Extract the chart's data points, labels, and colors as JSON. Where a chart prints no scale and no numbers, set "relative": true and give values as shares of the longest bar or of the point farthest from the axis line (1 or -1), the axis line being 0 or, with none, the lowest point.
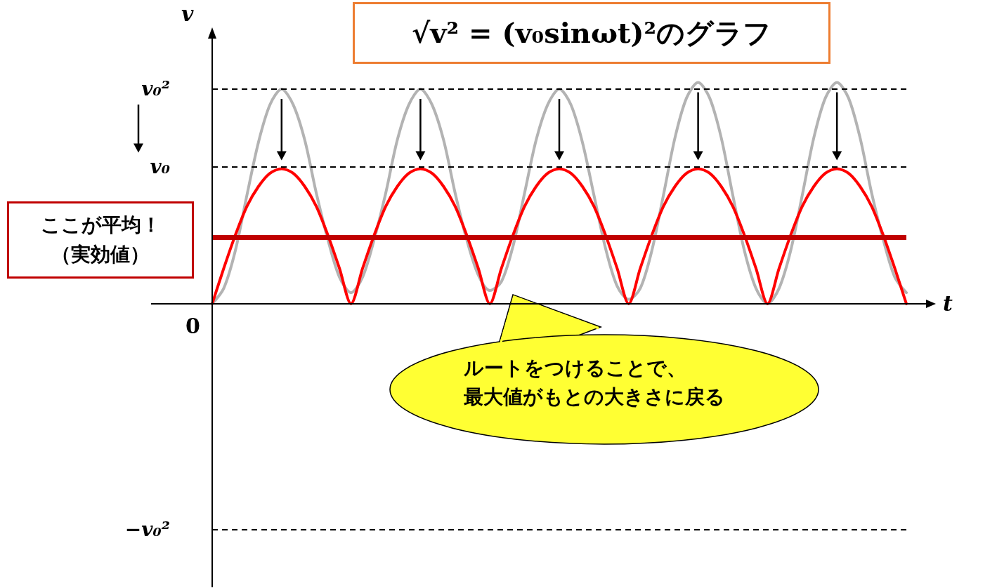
{
  "chart_data": {
    "type": "line",
    "title": "√v² = (v₀sinωt)²のグラフ",
    "xlabel": "t",
    "ylabel": "v",
    "relative": true,
    "tick_labels": false,
    "marker": "none",
    "categories": [
      null,
      null,
      null,
      null,
      null,
      null,
      null,
      null,
      null,
      null,
      null,
      null,
      null,
      null,
      null,
      null,
      null,
      null,
      null,
      null,
      null,
      null,
      null,
      null,
      null,
      null,
      null,
      null,
      null,
      null,
      null,
      null,
      null,
      null,
      null,
      null,
      null,
      null,
      null,
      null,
      null,
      null,
      null,
      null,
      null,
      null,
      null,
      null,
      null,
      null,
      null,
      null,
      null,
      null,
      null,
      null,
      null,
      null,
      null,
      null,
      null
    ],
    "series": [
      {
        "color": "#b3b3b3",
        "values": [
          0,
          0.07,
          0.24,
          0.49,
          0.73,
          0.9,
          0.97,
          0.9,
          0.74,
          0.5,
          0.29,
          0.12,
          0.05,
          0.12,
          0.29,
          0.5,
          0.74,
          0.9,
          0.97,
          0.9,
          0.74,
          0.5,
          0.29,
          0.13,
          0.06,
          0.1,
          0.26,
          0.5,
          0.74,
          0.9,
          0.97,
          0.9,
          0.73,
          0.49,
          0.25,
          0.08,
          0.02,
          0.07,
          0.24,
          0.49,
          0.75,
          0.93,
          1,
          0.93,
          0.75,
          0.49,
          0.24,
          0.07,
          0,
          0.07,
          0.24,
          0.49,
          0.75,
          0.93,
          1,
          0.93,
          0.75,
          0.5,
          0.29,
          0.12,
          0.05
        ]
      },
      {
        "color": "#ff0000",
        "values": [
          0,
          0.16,
          0.31,
          0.44,
          0.53,
          0.59,
          0.61,
          0.59,
          0.53,
          0.44,
          0.31,
          0.16,
          0,
          0.16,
          0.31,
          0.44,
          0.53,
          0.59,
          0.61,
          0.59,
          0.53,
          0.44,
          0.31,
          0.16,
          0,
          0.16,
          0.31,
          0.44,
          0.53,
          0.59,
          0.61,
          0.59,
          0.53,
          0.44,
          0.31,
          0.16,
          0,
          0.16,
          0.31,
          0.44,
          0.53,
          0.59,
          0.61,
          0.59,
          0.53,
          0.44,
          0.31,
          0.16,
          0,
          0.16,
          0.31,
          0.44,
          0.53,
          0.59,
          0.61,
          0.59,
          0.53,
          0.44,
          0.31,
          0.16,
          0
        ]
      }
    ],
    "ref_lines": [
      {
        "axis": "y",
        "value": 0.97,
        "label": "v₀²",
        "color": "#000000",
        "line_style": "dashed"
      },
      {
        "axis": "y",
        "value": 0.62,
        "label": "v₀",
        "color": "#000000",
        "line_style": "dashed"
      },
      {
        "axis": "y",
        "value": 0.3,
        "label": null,
        "color": "#c00000",
        "line_style": "solid"
      },
      {
        "axis": "y",
        "value": -1.02,
        "label": "−v₀²",
        "color": "#000000",
        "line_style": "dashed"
      }
    ],
    "annotations": [
      "0",
      "ここが平均！（実効値）",
      "ルートをつけることで、最大値がもとの大きさに戻る"
    ]
  }
}
